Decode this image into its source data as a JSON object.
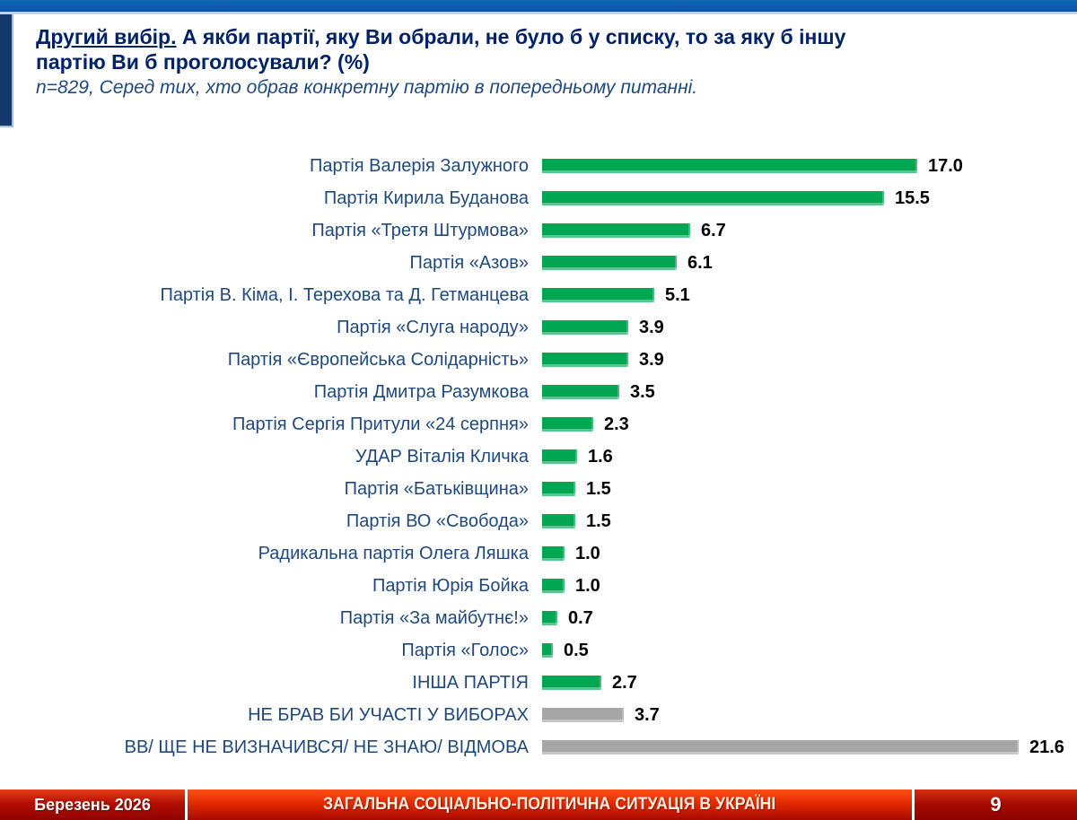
{
  "slide": {
    "header": {
      "title_lead": "Другий вибір.",
      "title_rest": "А якби партії, яку Ви обрали, не було б у списку, то за яку б іншу",
      "title_line2": "партію Ви б проголосували? (%)",
      "subtitle": "n=829, Серед тих, хто обрав конкретну партію в попередньому питанні."
    },
    "footer": {
      "date": "Березень 2026",
      "section": "ЗАГАЛЬНА СОЦІАЛЬНО-ПОЛІТИЧНА СИТУАЦІЯ В УКРАЇНІ",
      "page": "9"
    },
    "colors": {
      "bar_green": "#00A651",
      "bar_gray": "#A6A6A6",
      "title_navy": "#002368",
      "label_blue": "#1F497D",
      "top_band_blue": "#0A55A2",
      "accent_navy": "#14386B",
      "footer_red": "#C41200"
    }
  },
  "chart_data": {
    "type": "bar",
    "orientation": "horizontal",
    "unit": "%",
    "title": "Другий вибір. А якби партії, яку Ви обрали, не було б у списку, то за яку б іншу партію Ви б проголосували? (%)",
    "subtitle": "n=829, Серед тих, хто обрав конкретну партію в попередньому питанні.",
    "xlabel": "",
    "ylabel": "",
    "xlim": [
      0,
      22
    ],
    "grid": false,
    "legend": false,
    "value_labels_shown": true,
    "categories": [
      "Партія Валерія Залужного",
      "Партія Кирила Буданова",
      "Партія «Третя Штурмова»",
      "Партія «Азов»",
      "Партія В. Кіма, І. Терехова та Д. Гетманцева",
      "Партія «Слуга народу»",
      "Партія «Європейська Солідарність»",
      "Партія Дмитра Разумкова",
      "Партія Сергія Притули «24 серпня»",
      "УДАР Віталія Кличка",
      "Партія «Батьківщина»",
      "Партія ВО «Свобода»",
      "Радикальна партія Олега Ляшка",
      "Партія Юрія Бойка",
      "Партія «За майбутнє!»",
      "Партія «Голос»",
      "ІНША ПАРТІЯ",
      "НЕ БРАВ БИ УЧАСТІ У ВИБОРАХ",
      "ВВ/ ЩЕ НЕ ВИЗНАЧИВСЯ/ НЕ ЗНАЮ/ ВІДМОВА"
    ],
    "values": [
      17.0,
      15.5,
      6.7,
      6.1,
      5.1,
      3.9,
      3.9,
      3.5,
      2.3,
      1.6,
      1.5,
      1.5,
      1.0,
      1.0,
      0.7,
      0.5,
      2.7,
      3.7,
      21.6
    ],
    "bar_colors": [
      "green",
      "green",
      "green",
      "green",
      "green",
      "green",
      "green",
      "green",
      "green",
      "green",
      "green",
      "green",
      "green",
      "green",
      "green",
      "green",
      "green",
      "gray",
      "gray"
    ]
  }
}
